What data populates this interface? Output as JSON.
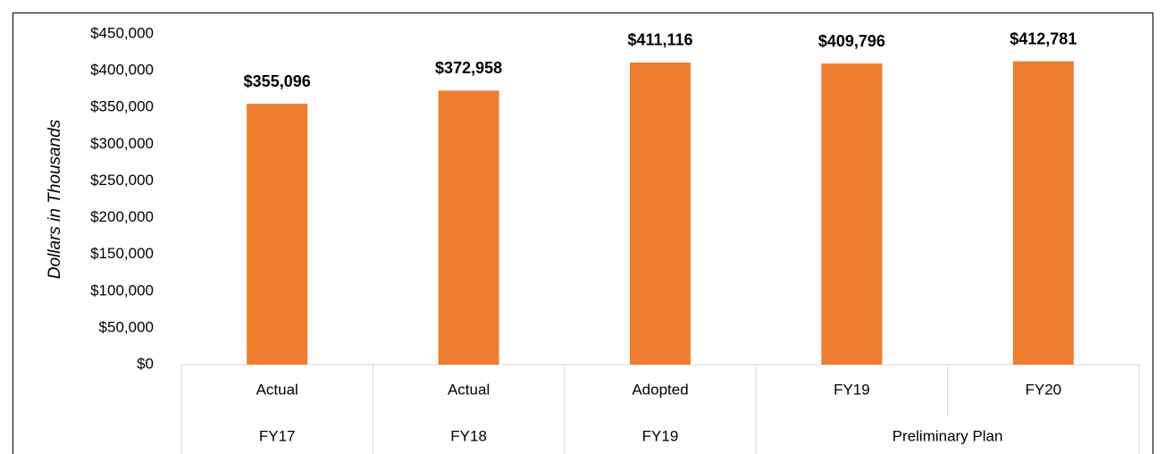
{
  "chart_data": {
    "type": "bar",
    "y_axis_label": "Dollars in Thousands",
    "categories": [
      "Actual",
      "Actual",
      "Adopted",
      "FY19",
      "FY20"
    ],
    "category_groups": [
      {
        "label": "FY17",
        "span": 1
      },
      {
        "label": "FY18",
        "span": 1
      },
      {
        "label": "FY19",
        "span": 1
      },
      {
        "label": "Preliminary Plan",
        "span": 2
      }
    ],
    "values": [
      355096,
      372958,
      411116,
      409796,
      412781
    ],
    "value_labels": [
      "$355,096",
      "$372,958",
      "$411,116",
      "$409,796",
      "$412,781"
    ],
    "color": "#ed7d31",
    "ylim": [
      0,
      450000
    ],
    "yticks": [
      {
        "value": 0,
        "label": "$0"
      },
      {
        "value": 50000,
        "label": "$50,000"
      },
      {
        "value": 100000,
        "label": "$100,000"
      },
      {
        "value": 150000,
        "label": "$150,000"
      },
      {
        "value": 200000,
        "label": "$200,000"
      },
      {
        "value": 250000,
        "label": "$250,000"
      },
      {
        "value": 300000,
        "label": "$300,000"
      },
      {
        "value": 350000,
        "label": "$350,000"
      },
      {
        "value": 400000,
        "label": "$400,000"
      },
      {
        "value": 450000,
        "label": "$450,000"
      }
    ],
    "grid": false
  }
}
